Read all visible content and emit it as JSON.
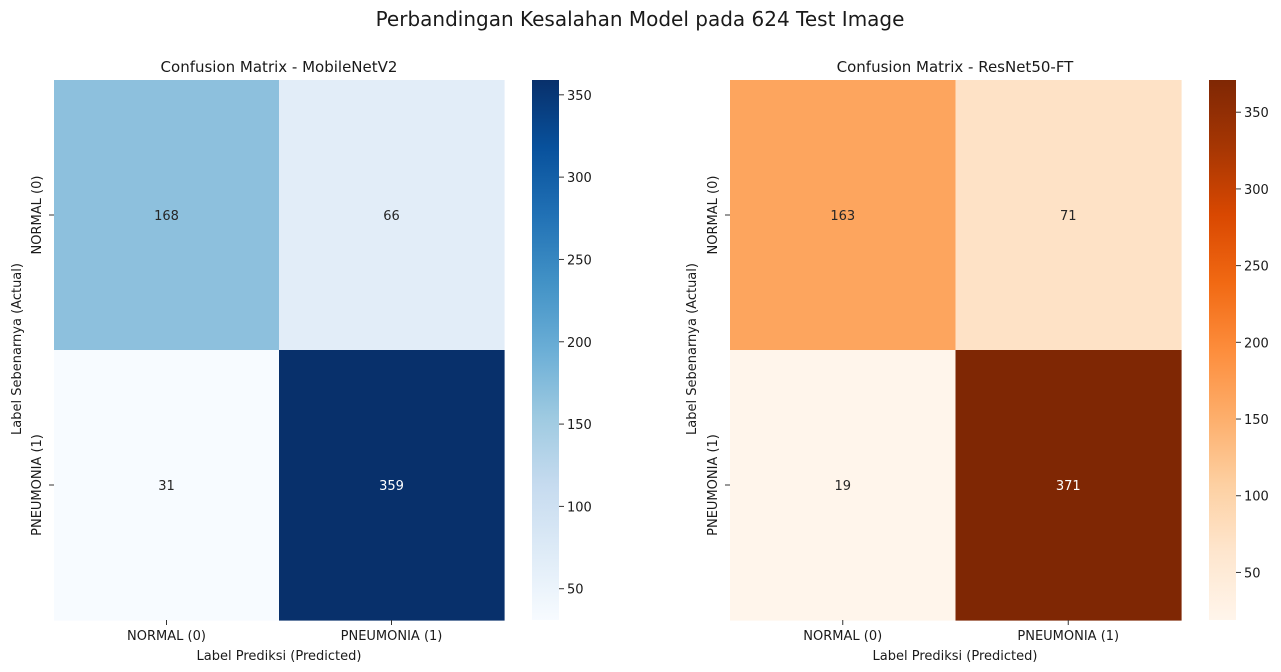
{
  "figure": {
    "title": "Perbandingan Kesalahan Model pada 624 Test Image"
  },
  "chart_data": [
    {
      "type": "heatmap",
      "title": "Confusion Matrix - MobileNetV2",
      "xlabel": "Label Prediksi (Predicted)",
      "ylabel": "Label Sebenarnya (Actual)",
      "x_categories": [
        "NORMAL (0)",
        "PNEUMONIA (1)"
      ],
      "y_categories": [
        "NORMAL (0)",
        "PNEUMONIA (1)"
      ],
      "values": [
        [
          168,
          66
        ],
        [
          31,
          359
        ]
      ],
      "colormap": "Blues",
      "colors": [
        "#f7fbff",
        "#deebf7",
        "#c6dbef",
        "#9ecae1",
        "#6baed6",
        "#4292c6",
        "#2171b5",
        "#08519c",
        "#08306b"
      ],
      "colorbar": {
        "range": [
          31,
          359
        ],
        "ticks": [
          50,
          100,
          150,
          200,
          250,
          300,
          350
        ]
      }
    },
    {
      "type": "heatmap",
      "title": "Confusion Matrix - ResNet50-FT",
      "xlabel": "Label Prediksi (Predicted)",
      "ylabel": "Label Sebenarnya (Actual)",
      "x_categories": [
        "NORMAL (0)",
        "PNEUMONIA (1)"
      ],
      "y_categories": [
        "NORMAL (0)",
        "PNEUMONIA (1)"
      ],
      "values": [
        [
          163,
          71
        ],
        [
          19,
          371
        ]
      ],
      "colormap": "Oranges",
      "colors": [
        "#fff5eb",
        "#fee6ce",
        "#fdd0a2",
        "#fdae6b",
        "#fd8d3c",
        "#f16913",
        "#d94801",
        "#a63603",
        "#7f2704"
      ],
      "colorbar": {
        "range": [
          19,
          371
        ],
        "ticks": [
          50,
          100,
          150,
          200,
          250,
          300,
          350
        ]
      }
    }
  ]
}
